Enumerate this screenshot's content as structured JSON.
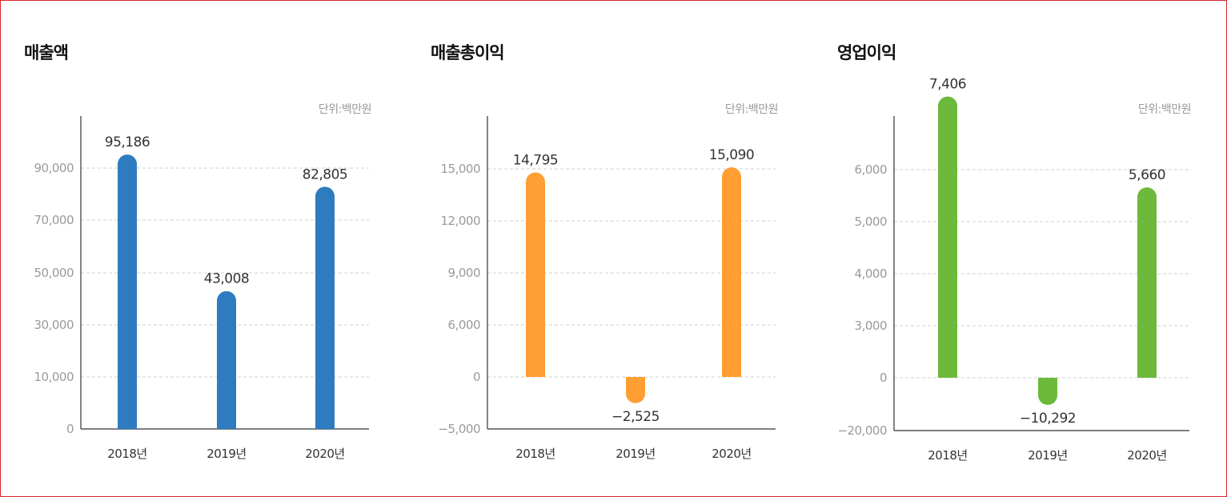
{
  "chart_data": [
    {
      "type": "bar",
      "title": "매출액",
      "unit": "단위:백만원",
      "categories": [
        "2018년",
        "2019년",
        "2020년"
      ],
      "values": [
        95186,
        43008,
        82805
      ],
      "value_labels": [
        "95,186",
        "43,008",
        "82,805"
      ],
      "yticks": [
        0,
        10000,
        30000,
        50000,
        70000,
        90000
      ],
      "ytick_labels": [
        "0",
        "10,000",
        "30,000",
        "50,000",
        "70,000",
        "90,000"
      ],
      "color": "#2e7bbf",
      "grid": true
    },
    {
      "type": "bar",
      "title": "매출총이익",
      "unit": "단위:백만원",
      "categories": [
        "2018년",
        "2019년",
        "2020년"
      ],
      "values": [
        14795,
        -2525,
        15090
      ],
      "value_labels": [
        "14,795",
        "−2,525",
        "15,090"
      ],
      "yticks": [
        -5000,
        0,
        6000,
        9000,
        12000,
        15000
      ],
      "ytick_labels": [
        "−5,000",
        "0",
        "6,000",
        "9,000",
        "12,000",
        "15,000"
      ],
      "color": "#ff9f33",
      "grid": true
    },
    {
      "type": "bar",
      "title": "영업이익",
      "unit": "단위:백만원",
      "categories": [
        "2018년",
        "2019년",
        "2020년"
      ],
      "values": [
        7406,
        -10292,
        5660
      ],
      "value_labels": [
        "7,406",
        "−10,292",
        "5,660"
      ],
      "yticks": [
        -20000,
        0,
        3000,
        4000,
        5000,
        6000
      ],
      "ytick_labels": [
        "−20,000",
        "0",
        "3,000",
        "4,000",
        "5,000",
        "6,000"
      ],
      "color": "#6db93b",
      "grid": true
    }
  ]
}
